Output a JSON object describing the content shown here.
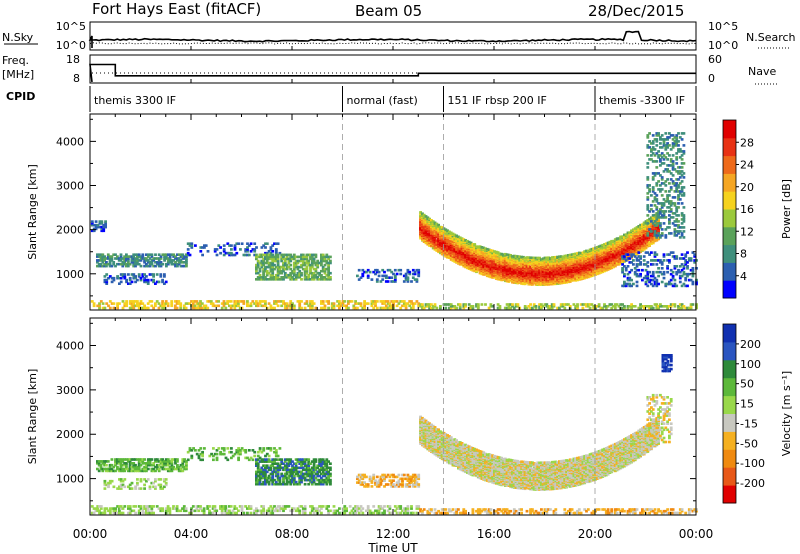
{
  "header": {
    "station": "Fort Hays East (fitACF)",
    "beam": "Beam 05",
    "date": "28/Dec/2015"
  },
  "noise_panel": {
    "left_label": "N.Sky",
    "right_label": "N.Search",
    "left_ticks": [
      "10^5",
      "10^0"
    ],
    "right_ticks": [
      "10^5",
      "10^0"
    ]
  },
  "freq_panel": {
    "left_label_top": "Freq.",
    "left_label_bottom": "[MHz]",
    "right_label": "Nave",
    "left_ticks": [
      "18",
      "8"
    ],
    "right_ticks": [
      "60",
      "0"
    ],
    "freq_steps": [
      {
        "t0": 0.0,
        "t1": 1.0,
        "mhz": 15.0
      },
      {
        "t0": 1.0,
        "t1": 13.0,
        "mhz": 10.5
      },
      {
        "t0": 13.0,
        "t1": 24.0,
        "mhz": 11.5
      }
    ]
  },
  "cpid": {
    "label": "CPID",
    "segments": [
      {
        "t": 0.0,
        "name": "themis 3300 IF"
      },
      {
        "t": 10.0,
        "name": "normal (fast)"
      },
      {
        "t": 14.0,
        "name": "151 IF rbsp 200 IF"
      },
      {
        "t": 20.0,
        "name": "themis -3300 IF"
      }
    ]
  },
  "time_axis": {
    "title": "Time UT",
    "ticks": [
      "00:00",
      "04:00",
      "08:00",
      "12:00",
      "16:00",
      "20:00",
      "00:00"
    ],
    "xlim": [
      0,
      24
    ]
  },
  "chart_data": [
    {
      "type": "heatmap",
      "name": "power",
      "ylabel": "Slant Range [km]",
      "yticks": [
        1000,
        2000,
        3000,
        4000
      ],
      "ylim": [
        180,
        4620
      ],
      "xlim": [
        0,
        24
      ],
      "colorbar_label": "Power [dB]",
      "colorbar_ticks": [
        "4",
        "8",
        "12",
        "16",
        "20",
        "24",
        "28"
      ],
      "colorbar_colors": [
        "#0000ff",
        "#2c5fb0",
        "#3f8f7c",
        "#5aa25a",
        "#9bc93c",
        "#f5d21e",
        "#f5a623",
        "#ee6a1a",
        "#e83214",
        "#e00000"
      ],
      "regions": [
        {
          "t0": 0.0,
          "t1": 0.6,
          "r0": 1950,
          "r1": 2200,
          "level": 1,
          "density": 0.5
        },
        {
          "t0": 0.2,
          "t1": 3.8,
          "r0": 1150,
          "r1": 1450,
          "level": 2,
          "density": 0.65
        },
        {
          "t0": 0.5,
          "t1": 3.0,
          "r0": 750,
          "r1": 1000,
          "level": 1,
          "density": 0.3
        },
        {
          "t0": 3.8,
          "t1": 7.5,
          "r0": 1400,
          "r1": 1700,
          "level": 1,
          "density": 0.25
        },
        {
          "t0": 6.5,
          "t1": 9.5,
          "r0": 850,
          "r1": 1450,
          "level": 3,
          "density": 0.7
        },
        {
          "t0": 0.0,
          "t1": 13.0,
          "r0": 200,
          "r1": 400,
          "level": 5,
          "density": 0.5
        },
        {
          "t0": 13.0,
          "t1": 24.0,
          "r0": 200,
          "r1": 320,
          "level": 4,
          "density": 0.45
        },
        {
          "t0": 10.5,
          "t1": 13.0,
          "r0": 800,
          "r1": 1100,
          "level": 1,
          "density": 0.35
        },
        {
          "t0": 13.0,
          "t1": 22.5,
          "r0": 900,
          "r1": 2500,
          "level": 6,
          "density": 0.85,
          "shape": "arc"
        },
        {
          "t0": 22.0,
          "t1": 23.5,
          "r0": 1800,
          "r1": 4200,
          "level": 2,
          "density": 0.35
        },
        {
          "t0": 21.0,
          "t1": 24.0,
          "r0": 700,
          "r1": 1500,
          "level": 1,
          "density": 0.3
        }
      ]
    },
    {
      "type": "heatmap",
      "name": "velocity",
      "ylabel": "Slant Range [km]",
      "yticks": [
        1000,
        2000,
        3000,
        4000
      ],
      "ylim": [
        180,
        4620
      ],
      "xlim": [
        0,
        24
      ],
      "colorbar_label": "Velocity [m s⁻¹]",
      "colorbar_ticks": [
        "200",
        "100",
        "50",
        "15",
        "-15",
        "-50",
        "-100",
        "-200"
      ],
      "colorbar_colors": [
        "#1030b0",
        "#2a55c0",
        "#2e8a3a",
        "#5cb83a",
        "#99d84a",
        "#c8c8c0",
        "#f5b020",
        "#f08a10",
        "#e85818",
        "#e00000"
      ],
      "regions": [
        {
          "t0": 0.2,
          "t1": 3.8,
          "r0": 1150,
          "r1": 1450,
          "level": 3,
          "density": 0.65
        },
        {
          "t0": 0.5,
          "t1": 3.0,
          "r0": 750,
          "r1": 1000,
          "level": 4,
          "density": 0.3
        },
        {
          "t0": 3.8,
          "t1": 7.5,
          "r0": 1400,
          "r1": 1700,
          "level": 3,
          "density": 0.25
        },
        {
          "t0": 6.5,
          "t1": 9.5,
          "r0": 850,
          "r1": 1450,
          "level": 2,
          "density": 0.7
        },
        {
          "t0": 0.0,
          "t1": 13.0,
          "r0": 200,
          "r1": 400,
          "level": 4,
          "density": 0.5
        },
        {
          "t0": 13.0,
          "t1": 24.0,
          "r0": 200,
          "r1": 320,
          "level": 6,
          "density": 0.45
        },
        {
          "t0": 10.5,
          "t1": 13.0,
          "r0": 800,
          "r1": 1100,
          "level": 6,
          "density": 0.55
        },
        {
          "t0": 13.0,
          "t1": 22.5,
          "r0": 900,
          "r1": 2500,
          "level": 5,
          "density": 0.85,
          "shape": "arc"
        },
        {
          "t0": 22.0,
          "t1": 23.0,
          "r0": 1800,
          "r1": 2900,
          "level": 5,
          "density": 0.4
        },
        {
          "t0": 22.6,
          "t1": 23.0,
          "r0": 3400,
          "r1": 3800,
          "level": 0,
          "density": 0.8
        }
      ]
    }
  ]
}
